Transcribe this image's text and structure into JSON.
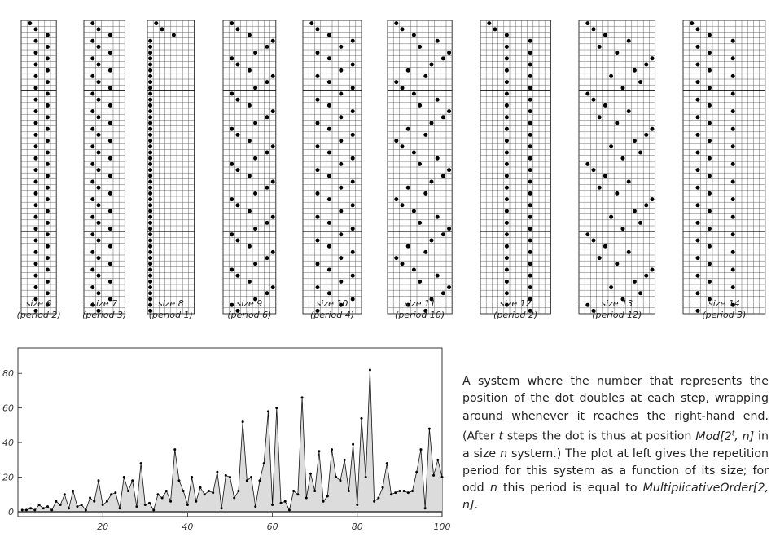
{
  "panels": [
    {
      "size": 6,
      "rows": [
        1,
        2,
        4,
        2,
        4,
        2,
        4,
        2,
        4,
        2,
        4,
        2,
        4,
        2,
        4,
        2,
        4,
        2,
        4,
        2,
        4,
        2,
        4,
        2,
        4,
        2,
        4,
        2,
        4,
        2,
        4,
        2,
        4,
        2,
        4,
        2,
        4,
        2,
        4,
        2,
        4,
        2,
        4,
        2,
        4,
        2,
        4,
        2,
        4,
        2
      ],
      "label": "size 6",
      "period_label": "(period 2)"
    },
    {
      "size": 7,
      "rows": [
        1,
        2,
        4,
        1,
        2,
        4,
        1,
        2,
        4,
        1,
        2,
        4,
        1,
        2,
        4,
        1,
        2,
        4,
        1,
        2,
        4,
        1,
        2,
        4,
        1,
        2,
        4,
        1,
        2,
        4,
        1,
        2,
        4,
        1,
        2,
        4,
        1,
        2,
        4,
        1,
        2,
        4,
        1,
        2,
        4,
        1,
        2,
        4,
        1,
        2
      ],
      "label": "size 7",
      "period_label": "(period 3)"
    },
    {
      "size": 8,
      "rows": [
        1,
        2,
        4,
        0,
        0,
        0,
        0,
        0,
        0,
        0,
        0,
        0,
        0,
        0,
        0,
        0,
        0,
        0,
        0,
        0,
        0,
        0,
        0,
        0,
        0,
        0,
        0,
        0,
        0,
        0,
        0,
        0,
        0,
        0,
        0,
        0,
        0,
        0,
        0,
        0,
        0,
        0,
        0,
        0,
        0,
        0,
        0,
        0,
        0,
        0
      ],
      "label": "size 8",
      "period_label": "(period 1)"
    },
    {
      "size": 9,
      "rows": [
        1,
        2,
        4,
        8,
        7,
        5,
        1,
        2,
        4,
        8,
        7,
        5,
        1,
        2,
        4,
        8,
        7,
        5,
        1,
        2,
        4,
        8,
        7,
        5,
        1,
        2,
        4,
        8,
        7,
        5,
        1,
        2,
        4,
        8,
        7,
        5,
        1,
        2,
        4,
        8,
        7,
        5,
        1,
        2,
        4,
        8,
        7,
        5,
        1,
        2
      ],
      "label": "size 9",
      "period_label": "(period 6)"
    },
    {
      "size": 10,
      "rows": [
        1,
        2,
        4,
        8,
        6,
        2,
        4,
        8,
        6,
        2,
        4,
        8,
        6,
        2,
        4,
        8,
        6,
        2,
        4,
        8,
        6,
        2,
        4,
        8,
        6,
        2,
        4,
        8,
        6,
        2,
        4,
        8,
        6,
        2,
        4,
        8,
        6,
        2,
        4,
        8,
        6,
        2,
        4,
        8,
        6,
        2,
        4,
        8,
        6,
        2
      ],
      "label": "size 10",
      "period_label": "(period 4)"
    },
    {
      "size": 11,
      "rows": [
        1,
        2,
        4,
        8,
        5,
        10,
        9,
        7,
        3,
        6,
        1,
        2,
        4,
        8,
        5,
        10,
        9,
        7,
        3,
        6,
        1,
        2,
        4,
        8,
        5,
        10,
        9,
        7,
        3,
        6,
        1,
        2,
        4,
        8,
        5,
        10,
        9,
        7,
        3,
        6,
        1,
        2,
        4,
        8,
        5,
        10,
        9,
        7,
        3,
        6
      ],
      "label": "size 11",
      "period_label": "(period 10)"
    },
    {
      "size": 12,
      "rows": [
        1,
        2,
        4,
        8,
        4,
        8,
        4,
        8,
        4,
        8,
        4,
        8,
        4,
        8,
        4,
        8,
        4,
        8,
        4,
        8,
        4,
        8,
        4,
        8,
        4,
        8,
        4,
        8,
        4,
        8,
        4,
        8,
        4,
        8,
        4,
        8,
        4,
        8,
        4,
        8,
        4,
        8,
        4,
        8,
        4,
        8,
        4,
        8,
        4,
        8
      ],
      "label": "size 12",
      "period_label": "(period 2)"
    },
    {
      "size": 13,
      "rows": [
        1,
        2,
        4,
        8,
        3,
        6,
        12,
        11,
        9,
        5,
        10,
        7,
        1,
        2,
        4,
        8,
        3,
        6,
        12,
        11,
        9,
        5,
        10,
        7,
        1,
        2,
        4,
        8,
        3,
        6,
        12,
        11,
        9,
        5,
        10,
        7,
        1,
        2,
        4,
        8,
        3,
        6,
        12,
        11,
        9,
        5,
        10,
        7,
        1,
        2
      ],
      "label": "size 13",
      "period_label": "(period 12)"
    },
    {
      "size": 14,
      "rows": [
        1,
        2,
        4,
        8,
        2,
        4,
        8,
        2,
        4,
        8,
        2,
        4,
        8,
        2,
        4,
        8,
        2,
        4,
        8,
        2,
        4,
        8,
        2,
        4,
        8,
        2,
        4,
        8,
        2,
        4,
        8,
        2,
        4,
        8,
        2,
        4,
        8,
        2,
        4,
        8,
        2,
        4,
        8,
        2,
        4,
        8,
        2,
        4,
        8,
        2
      ],
      "label": "size 14",
      "period_label": "(period 3)"
    }
  ],
  "chart_data": {
    "type": "line",
    "title": "",
    "xlabel": "",
    "ylabel": "",
    "xlim": [
      0,
      100
    ],
    "ylim": [
      0,
      90
    ],
    "x_ticks": [
      "20",
      "40",
      "60",
      "80",
      "100"
    ],
    "y_ticks": [
      "0",
      "20",
      "40",
      "60",
      "80"
    ],
    "fill": "to-zero",
    "series": [
      {
        "values": [
          1,
          1,
          2,
          1,
          4,
          2,
          3,
          1,
          6,
          4,
          10,
          2,
          12,
          3,
          4,
          1,
          8,
          6,
          18,
          4,
          6,
          10,
          11,
          2,
          20,
          12,
          18,
          3,
          28,
          4,
          5,
          1,
          10,
          8,
          12,
          6,
          36,
          18,
          12,
          4,
          20,
          6,
          14,
          10,
          12,
          11,
          23,
          2,
          21,
          20,
          8,
          12,
          52,
          18,
          20,
          3,
          18,
          28,
          58,
          4,
          60,
          5,
          6,
          1,
          12,
          10,
          66,
          8,
          22,
          12,
          35,
          6,
          9,
          36,
          20,
          18,
          30,
          12,
          39,
          4,
          54,
          20,
          82,
          6,
          8,
          14,
          28,
          10,
          11,
          12,
          12,
          11,
          12,
          23,
          36,
          2,
          48,
          21,
          30,
          20
        ]
      }
    ]
  },
  "caption": {
    "part1": "A system where the number that represents the position of the dot doubles at each step, wrapping around whenever it reaches the right-hand end. (After ",
    "t_var": "t",
    "part2": " steps the dot is thus at position ",
    "mod_expr": "Mod[2",
    "exponent": "t",
    "mod_expr_end": ", n]",
    "part3": " in a size ",
    "n_var": "n",
    "part4": " system.) The plot at left gives the repetition period for this system as a function of its size; for odd ",
    "n_var2": "n",
    "part5": " this period is equal to ",
    "mult_expr": "MultiplicativeOrder[2, n]",
    "part6": "."
  }
}
